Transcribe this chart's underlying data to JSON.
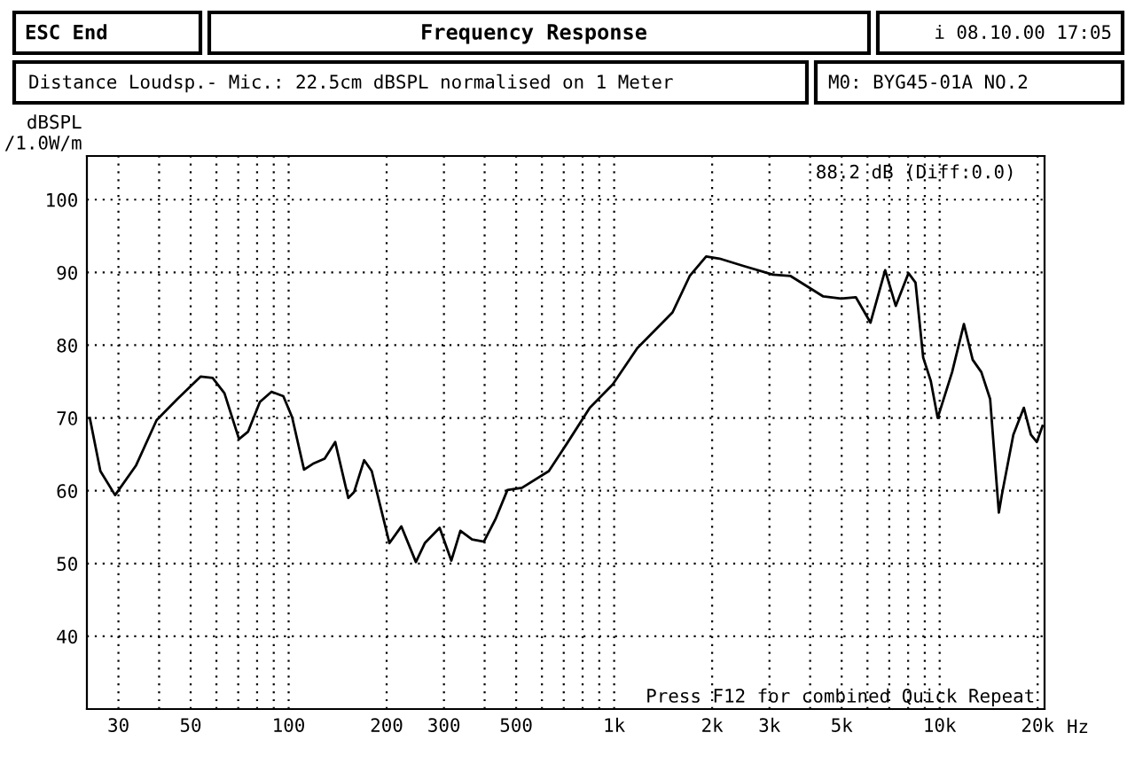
{
  "chart_data": {
    "type": "line",
    "title": "Frequency Response",
    "subtitle": "Distance Loudsp.- Mic.: 22.5cm dBSPL normalised on 1 Meter",
    "ylabel": "dBSPL\n/1.0W/m",
    "annotations": [
      "ESC End",
      "i 08.10.00 17:05",
      "M0: BYG45-01A NO.2",
      "88.2 dB (Diff:0.0)",
      "Press F12 for combined Quick Repeat"
    ],
    "log": "x",
    "grid": true,
    "legend": false,
    "marker": "none",
    "line_style": "solid",
    "xlim": [
      24,
      21000
    ],
    "ylim": [
      30,
      106
    ],
    "xticks": [
      30,
      {
        "value": 40,
        "label": null
      },
      50,
      {
        "value": 60,
        "label": null
      },
      {
        "value": 70,
        "label": null
      },
      {
        "value": 80,
        "label": null
      },
      {
        "value": 90,
        "label": null
      },
      100,
      200,
      300,
      {
        "value": 400,
        "label": null
      },
      500,
      {
        "value": 600,
        "label": null
      },
      {
        "value": 700,
        "label": null
      },
      {
        "value": 800,
        "label": null
      },
      {
        "value": 900,
        "label": null
      },
      {
        "value": 1000,
        "label": "1k"
      },
      {
        "value": 2000,
        "label": "2k"
      },
      {
        "value": 3000,
        "label": "3k"
      },
      {
        "value": 4000,
        "label": null
      },
      {
        "value": 5000,
        "label": "5k"
      },
      {
        "value": 6000,
        "label": null
      },
      {
        "value": 7000,
        "label": null
      },
      {
        "value": 8000,
        "label": null
      },
      {
        "value": 9000,
        "label": null
      },
      {
        "value": 10000,
        "label": "10k"
      },
      {
        "value": 20000,
        "label": "20k"
      }
    ],
    "xlabel": "Hz",
    "yticks": [
      40,
      50,
      60,
      70,
      80,
      90,
      100
    ],
    "series": [
      {
        "color": "#000000",
        "x": [
          24.5,
          26.4,
          29.3,
          34,
          39.3,
          45.5,
          53.7,
          58.4,
          63.5,
          70.4,
          75,
          81.6,
          88.6,
          96.3,
          102.5,
          111.5,
          118.7,
          129,
          139,
          152.5,
          158.8,
          170.6,
          180,
          204,
          222,
          246,
          262,
          291,
          316,
          337,
          366,
          398,
          432,
          470,
          521,
          630,
          714,
          842,
          990,
          1178,
          1511,
          1706,
          1917,
          2108,
          2493,
          3075,
          3486,
          4390,
          4980,
          5525,
          6130,
          6800,
          7330,
          8020,
          8430,
          8900,
          9390,
          9860,
          10920,
          11870,
          12630,
          13430,
          14290,
          15200,
          15520,
          16840,
          18140,
          19060,
          19880,
          20700
        ],
        "values": [
          70.0,
          62.7,
          59.4,
          63.5,
          69.7,
          72.6,
          75.7,
          75.5,
          73.4,
          67.1,
          68.1,
          72.2,
          73.6,
          73.0,
          70.1,
          62.9,
          63.7,
          64.4,
          66.7,
          59.0,
          59.8,
          64.2,
          62.7,
          52.8,
          55.1,
          50.2,
          52.8,
          54.9,
          50.4,
          54.5,
          53.3,
          53.0,
          56.1,
          60.1,
          60.4,
          62.7,
          66.4,
          71.4,
          74.6,
          79.6,
          84.5,
          89.5,
          92.2,
          91.9,
          90.9,
          89.7,
          89.5,
          86.7,
          86.4,
          86.6,
          83.1,
          90.3,
          85.4,
          89.9,
          88.6,
          78.3,
          75.1,
          70.0,
          76.3,
          82.9,
          78.0,
          76.3,
          72.6,
          57.0,
          59.4,
          67.7,
          71.4,
          67.7,
          66.7,
          68.9
        ]
      }
    ]
  }
}
